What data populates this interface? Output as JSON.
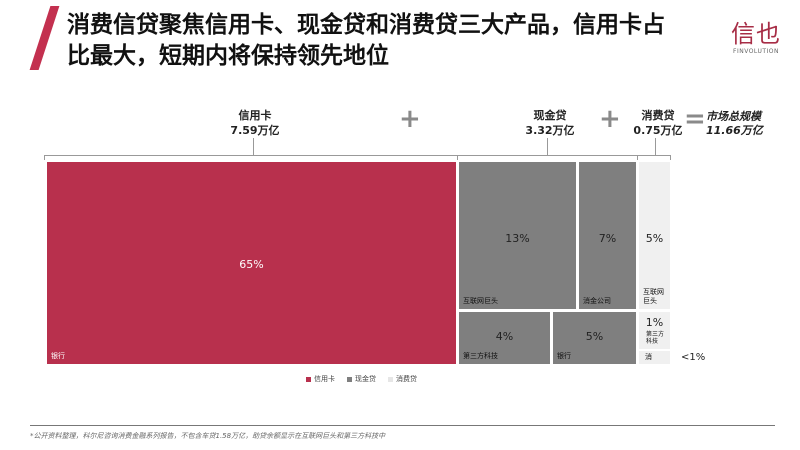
{
  "title": {
    "line1": "消费信贷聚焦信用卡、现金贷和消费贷三大产品，信用卡占",
    "line2": "比最大，短期内将保持领先地位"
  },
  "logo": {
    "mark": "信也",
    "sub": "FINVOLUTION"
  },
  "header": {
    "credit_card": {
      "name": "信用卡",
      "value": "7.59万亿"
    },
    "cash_loan": {
      "name": "现金贷",
      "value": "3.32万亿"
    },
    "consumer_loan": {
      "name": "消费贷",
      "value": "0.75万亿"
    },
    "plus": "+",
    "equals": "=",
    "total_label": "市场总规模",
    "total_value": "11.66万亿"
  },
  "chart_data": {
    "type": "treemap",
    "unit": "percent of total market",
    "groups": [
      {
        "name": "信用卡",
        "color": "#b8304d",
        "cells": [
          {
            "label": "银行",
            "value": 65,
            "pct_text": "65%"
          }
        ]
      },
      {
        "name": "现金贷",
        "color": "#7f7f7f",
        "cells": [
          {
            "label": "互联网巨头",
            "value": 13,
            "pct_text": "13%"
          },
          {
            "label": "消金公司",
            "value": 7,
            "pct_text": "7%"
          },
          {
            "label": "第三方科技",
            "value": 4,
            "pct_text": "4%"
          },
          {
            "label": "银行",
            "value": 5,
            "pct_text": "5%"
          }
        ]
      },
      {
        "name": "消费贷",
        "color": "#f0f0f0",
        "cells": [
          {
            "label": "互联网巨头",
            "value": 5,
            "pct_text": "5%"
          },
          {
            "label": "第三方科技",
            "value": 1,
            "pct_text": "1%"
          },
          {
            "label": "消",
            "value": 0.5,
            "pct_text": "<1%"
          }
        ]
      }
    ],
    "legend": [
      "信用卡",
      "现金贷",
      "消费贷"
    ],
    "legend_colors": [
      "#b8304d",
      "#7f7f7f",
      "#e6e6e6"
    ]
  },
  "footnote": "*公开资料整理，科尔尼咨询消费金融系列报告，不包含车贷1.58万亿，助贷余额显示在互联网巨头和第三方科技中"
}
